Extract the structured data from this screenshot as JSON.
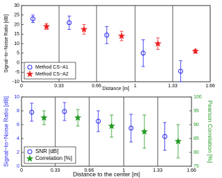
{
  "chart_data": [
    {
      "type": "scatter",
      "y_label": "Signal−to−Noise Ratio [dB]",
      "x_label": "Distance [m]",
      "xlim": [
        0,
        1.66
      ],
      "xticks": [
        0,
        0.33,
        0.66,
        1,
        1.33,
        1.66
      ],
      "ylim": [
        -10,
        30
      ],
      "yticks": [
        -10,
        -5,
        0,
        5,
        10,
        15,
        20,
        25,
        30
      ],
      "grid": "x",
      "legend": "lower left",
      "series": [
        {
          "name": "Method CS−A1",
          "color": "#2222ee",
          "marker": "o",
          "x": [
            0.1,
            0.42,
            0.75,
            1.07,
            1.4
          ],
          "values": [
            23,
            21,
            14.5,
            5,
            -4.5
          ],
          "errors": [
            2,
            3.5,
            4.5,
            7,
            5.5
          ]
        },
        {
          "name": "Method CS−A2",
          "color": "#ee2222",
          "marker": "*",
          "x": [
            0.22,
            0.55,
            0.88,
            1.2,
            1.53
          ],
          "values": [
            19,
            17.5,
            14,
            10,
            6
          ],
          "errors": [
            1.5,
            2.5,
            2.5,
            3,
            1
          ]
        }
      ]
    },
    {
      "type": "scatter",
      "y_label": "Signal−to−Noise Ratio [dB]",
      "y2_label": "Pearson Correlation [%]",
      "x_label": "Distance to the center [m]",
      "y_label_color": "#2222ee",
      "y2_label_color": "#229922",
      "xlim": [
        0,
        1.66
      ],
      "xticks": [
        0,
        0.33,
        0.66,
        1,
        1.33,
        1.66
      ],
      "ylim": [
        0,
        10
      ],
      "yticks": [
        0,
        2,
        4,
        6,
        8,
        10
      ],
      "y2lim": [
        75,
        100
      ],
      "y2ticks": [
        75,
        80,
        85,
        90,
        95,
        100
      ],
      "grid": "x",
      "legend": "lower left",
      "series": [
        {
          "name": "SNR [dB]",
          "color": "#2222ee",
          "marker": "o",
          "x": [
            0.1,
            0.42,
            0.75,
            1.07,
            1.4
          ],
          "values": [
            7.8,
            7.9,
            6.5,
            5.5,
            4.3
          ],
          "errors": [
            1.3,
            1.3,
            1.5,
            2,
            2
          ]
        },
        {
          "name": "Correlation [%]",
          "color": "#229922",
          "marker": "*",
          "axis": "y2",
          "x": [
            0.22,
            0.55,
            0.88,
            1.2,
            1.53
          ],
          "values": [
            92.5,
            92.5,
            89.5,
            87.5,
            84
          ],
          "errors": [
            2.5,
            3,
            4,
            6,
            6
          ]
        }
      ]
    }
  ]
}
